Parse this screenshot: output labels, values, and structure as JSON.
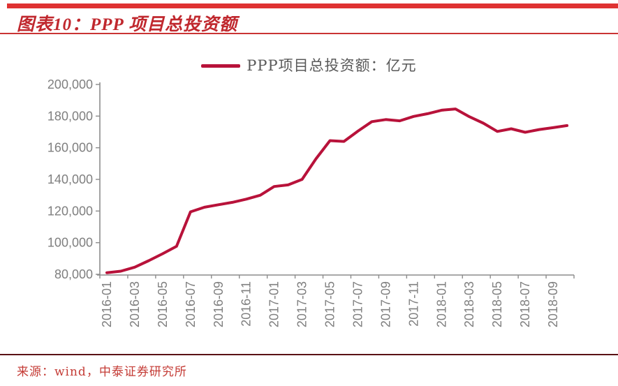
{
  "chart_data": {
    "type": "line",
    "title": "图表10：PPP 项目总投资额",
    "legend": "PPP项目总投资额：亿元",
    "source": "来源：wind，中泰证券研究所",
    "ylabel": "亿元",
    "ylim": [
      80000,
      200000
    ],
    "ytick_step": 20000,
    "ytick_labels": [
      "80,000",
      "100,000",
      "120,000",
      "140,000",
      "160,000",
      "180,000",
      "200,000"
    ],
    "xtick_label_every": 2,
    "grid": false,
    "legend_position": "top-center",
    "x": [
      "2016-01",
      "2016-02",
      "2016-03",
      "2016-04",
      "2016-05",
      "2016-06",
      "2016-07",
      "2016-08",
      "2016-09",
      "2016-10",
      "2016-11",
      "2016-12",
      "2017-01",
      "2017-02",
      "2017-03",
      "2017-04",
      "2017-05",
      "2017-06",
      "2017-07",
      "2017-08",
      "2017-09",
      "2017-10",
      "2017-11",
      "2017-12",
      "2018-01",
      "2018-02",
      "2018-03",
      "2018-04",
      "2018-05",
      "2018-06",
      "2018-07",
      "2018-08",
      "2018-09",
      "2018-10"
    ],
    "values": [
      81000,
      82000,
      84500,
      88600,
      93000,
      97700,
      119500,
      122400,
      124000,
      125500,
      127500,
      130000,
      135500,
      136500,
      140000,
      153000,
      164500,
      164000,
      170500,
      176500,
      177800,
      177000,
      179800,
      181500,
      183700,
      184500,
      179600,
      175500,
      170300,
      172000,
      169800,
      171500,
      172700,
      174000
    ]
  },
  "colors": {
    "line": "#b8123a",
    "header_bar": "#df3232",
    "title_text": "#c0282e",
    "title_rule": "#c93434",
    "footer_rule": "#5a1215",
    "footer_text": "#c43b35",
    "axis": "#8c8c8c",
    "tick_label": "#7f7f7f",
    "legend_text": "#595959"
  }
}
